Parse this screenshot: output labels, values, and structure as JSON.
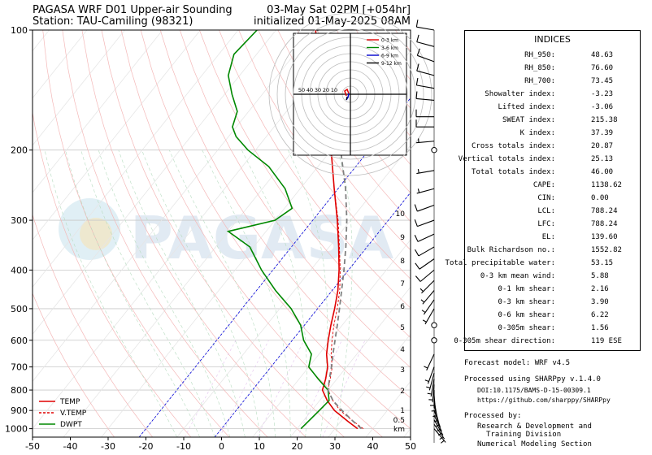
{
  "header": {
    "title_left": "PAGASA WRF D01 Upper-air Sounding",
    "station": "Station: TAU-Camiling (98321)",
    "valid_time": "03-May Sat 02PM [+054hr]",
    "init_time": "initialized 01-May-2025 08AM"
  },
  "watermark": "PAGASA",
  "chart_data": {
    "type": "line",
    "subtype": "skew-t log-p",
    "x_ticks": [
      -50,
      -40,
      -30,
      -20,
      -10,
      0,
      10,
      20,
      30,
      40,
      50
    ],
    "xlim": [
      -50,
      50
    ],
    "p_ticks": [
      100,
      200,
      300,
      400,
      500,
      600,
      700,
      800,
      900,
      1000
    ],
    "ylim_hpa": [
      1050,
      100
    ],
    "height_ticks_km": [
      "10",
      "9",
      "8",
      "7",
      "6",
      "5",
      "4",
      "3",
      "2",
      "1",
      "0.5",
      "km"
    ],
    "legend": {
      "placement": "bottom-left",
      "entries": [
        {
          "label": "TEMP",
          "color": "#e00000",
          "style": "solid"
        },
        {
          "label": "V.TEMP",
          "color": "#e00000",
          "style": "dashed"
        },
        {
          "label": "DWPT",
          "color": "#008800",
          "style": "solid"
        }
      ]
    },
    "series": [
      {
        "name": "TEMP",
        "color": "#e00000",
        "points": [
          [
            1000,
            36
          ],
          [
            960,
            32
          ],
          [
            900,
            26
          ],
          [
            850,
            22
          ],
          [
            800,
            18.5
          ],
          [
            750,
            17
          ],
          [
            700,
            15
          ],
          [
            650,
            12
          ],
          [
            600,
            9.5
          ],
          [
            550,
            7
          ],
          [
            500,
            4.5
          ],
          [
            450,
            1.5
          ],
          [
            400,
            -2.5
          ],
          [
            350,
            -7.5
          ],
          [
            300,
            -13.5
          ],
          [
            250,
            -21
          ],
          [
            200,
            -30
          ],
          [
            175,
            -35.5
          ],
          [
            150,
            -42
          ],
          [
            130,
            -48
          ],
          [
            115,
            -54
          ],
          [
            100,
            -59.5
          ]
        ]
      },
      {
        "name": "V.TEMP",
        "color": "#e00000",
        "points": [
          [
            1000,
            37.5
          ],
          [
            960,
            33.5
          ],
          [
            900,
            27.5
          ],
          [
            850,
            23.5
          ],
          [
            800,
            20
          ],
          [
            750,
            18.2
          ],
          [
            700,
            16.2
          ],
          [
            650,
            13.2
          ],
          [
            600,
            10.5
          ],
          [
            550,
            7.8
          ],
          [
            500,
            5.2
          ],
          [
            450,
            2
          ],
          [
            400,
            -2.2
          ],
          [
            350,
            -7.3
          ],
          [
            300,
            -13.3
          ],
          [
            250,
            -21
          ],
          [
            200,
            -30
          ],
          [
            175,
            -35.5
          ],
          [
            150,
            -42
          ],
          [
            130,
            -48
          ],
          [
            115,
            -54
          ],
          [
            100,
            -59.5
          ]
        ]
      },
      {
        "name": "DWPT",
        "color": "#008800",
        "points": [
          [
            1000,
            21
          ],
          [
            950,
            21.5
          ],
          [
            900,
            22
          ],
          [
            850,
            22.5
          ],
          [
            800,
            20
          ],
          [
            750,
            15
          ],
          [
            700,
            10
          ],
          [
            650,
            8
          ],
          [
            600,
            3
          ],
          [
            550,
            -1
          ],
          [
            500,
            -7
          ],
          [
            450,
            -15
          ],
          [
            400,
            -23
          ],
          [
            350,
            -31
          ],
          [
            320,
            -40
          ],
          [
            300,
            -30
          ],
          [
            280,
            -28
          ],
          [
            250,
            -34
          ],
          [
            220,
            -43
          ],
          [
            200,
            -52
          ],
          [
            185,
            -58
          ],
          [
            175,
            -61
          ],
          [
            160,
            -63
          ],
          [
            145,
            -68
          ],
          [
            130,
            -73
          ],
          [
            115,
            -76
          ],
          [
            100,
            -75
          ]
        ]
      },
      {
        "name": "Parcel",
        "color": "#808080",
        "points": [
          [
            1000,
            37
          ],
          [
            950,
            32.5
          ],
          [
            900,
            28
          ],
          [
            850,
            23.5
          ],
          [
            800,
            20
          ],
          [
            750,
            18
          ],
          [
            700,
            16
          ],
          [
            650,
            13.7
          ],
          [
            600,
            11.3
          ],
          [
            550,
            8.7
          ],
          [
            500,
            5.8
          ],
          [
            450,
            2.5
          ],
          [
            400,
            -1.2
          ],
          [
            350,
            -5.6
          ],
          [
            300,
            -11
          ],
          [
            250,
            -18
          ],
          [
            200,
            -27.5
          ],
          [
            175,
            -33.5
          ],
          [
            150,
            -40.5
          ],
          [
            130,
            -47
          ],
          [
            115,
            -53
          ],
          [
            100,
            -59
          ]
        ]
      }
    ],
    "wind_barbs": [
      {
        "p": 1000,
        "dir": 140,
        "spd": 5
      },
      {
        "p": 975,
        "dir": 145,
        "spd": 5
      },
      {
        "p": 950,
        "dir": 150,
        "spd": 5
      },
      {
        "p": 925,
        "dir": 155,
        "spd": 5
      },
      {
        "p": 900,
        "dir": 160,
        "spd": 5
      },
      {
        "p": 875,
        "dir": 165,
        "spd": 5
      },
      {
        "p": 850,
        "dir": 170,
        "spd": 5
      },
      {
        "p": 825,
        "dir": 175,
        "spd": 5
      },
      {
        "p": 800,
        "dir": 180,
        "spd": 5
      },
      {
        "p": 775,
        "dir": 185,
        "spd": 5
      },
      {
        "p": 750,
        "dir": 190,
        "spd": 5
      },
      {
        "p": 725,
        "dir": 195,
        "spd": 5
      },
      {
        "p": 700,
        "dir": 200,
        "spd": 5
      },
      {
        "p": 650,
        "dir": 205,
        "spd": 5
      },
      {
        "p": 600,
        "dir": 0,
        "spd": 0
      },
      {
        "p": 550,
        "dir": 0,
        "spd": 0
      },
      {
        "p": 500,
        "dir": 210,
        "spd": 5
      },
      {
        "p": 475,
        "dir": 215,
        "spd": 5
      },
      {
        "p": 450,
        "dir": 220,
        "spd": 5
      },
      {
        "p": 425,
        "dir": 225,
        "spd": 5
      },
      {
        "p": 400,
        "dir": 230,
        "spd": 10
      },
      {
        "p": 375,
        "dir": 235,
        "spd": 10
      },
      {
        "p": 350,
        "dir": 240,
        "spd": 10
      },
      {
        "p": 325,
        "dir": 245,
        "spd": 10
      },
      {
        "p": 300,
        "dir": 250,
        "spd": 10
      },
      {
        "p": 275,
        "dir": 250,
        "spd": 10
      },
      {
        "p": 250,
        "dir": 255,
        "spd": 5
      },
      {
        "p": 225,
        "dir": 260,
        "spd": 5
      },
      {
        "p": 200,
        "dir": 0,
        "spd": 0
      },
      {
        "p": 190,
        "dir": 265,
        "spd": 5
      },
      {
        "p": 175,
        "dir": 270,
        "spd": 10
      },
      {
        "p": 165,
        "dir": 270,
        "spd": 10
      },
      {
        "p": 150,
        "dir": 275,
        "spd": 10
      },
      {
        "p": 140,
        "dir": 280,
        "spd": 10
      },
      {
        "p": 130,
        "dir": 285,
        "spd": 10
      },
      {
        "p": 120,
        "dir": 290,
        "spd": 10
      },
      {
        "p": 110,
        "dir": 285,
        "spd": 10
      },
      {
        "p": 100,
        "dir": 280,
        "spd": 10
      }
    ],
    "hodograph": {
      "ring_labels": [
        "50",
        "40",
        "30",
        "20",
        "10"
      ],
      "legend": [
        {
          "label": "0-3 km",
          "color": "#e00000"
        },
        {
          "label": "3-6 km",
          "color": "#008800"
        },
        {
          "label": "6-9 km",
          "color": "#0000cc"
        },
        {
          "label": "9-12 km",
          "color": "#000000"
        }
      ]
    }
  },
  "indices": {
    "title": "INDICES",
    "rows": [
      {
        "label": "RH_950:",
        "value": "48.63"
      },
      {
        "label": "RH_850:",
        "value": "76.60"
      },
      {
        "label": "RH_700:",
        "value": "73.45"
      },
      {
        "label": "Showalter index:",
        "value": "-3.23"
      },
      {
        "label": "Lifted index:",
        "value": "-3.06"
      },
      {
        "label": "SWEAT index:",
        "value": "215.38"
      },
      {
        "label": "K index:",
        "value": "37.39"
      },
      {
        "label": "Cross totals index:",
        "value": "20.87"
      },
      {
        "label": "Vertical totals index:",
        "value": "25.13"
      },
      {
        "label": "Total totals index:",
        "value": "46.00"
      },
      {
        "label": "CAPE:",
        "value": "1138.62"
      },
      {
        "label": "CIN:",
        "value": "0.00"
      },
      {
        "label": "LCL:",
        "value": "788.24"
      },
      {
        "label": "LFC:",
        "value": "788.24"
      },
      {
        "label": "EL:",
        "value": "139.60"
      },
      {
        "label": "Bulk Richardson no.:",
        "value": "1552.82"
      },
      {
        "label": "Total precipitable water:",
        "value": "53.15"
      },
      {
        "label": "0-3 km mean wind:",
        "value": "5.88"
      },
      {
        "label": "0-1 km shear:",
        "value": "2.16"
      },
      {
        "label": "0-3 km shear:",
        "value": "3.90"
      },
      {
        "label": "0-6 km shear:",
        "value": "6.22"
      },
      {
        "label": "0-305m shear:",
        "value": "1.56"
      },
      {
        "label": "0-305m shear direction:",
        "value": "119 ESE"
      }
    ]
  },
  "footer": {
    "model": "Forecast model: WRF v4.5",
    "processed": "Processed using SHARPpy v.1.4.0",
    "doi": "DOI:10.1175/BAMS-D-15-00309.1",
    "url": "https://github.com/sharppy/SHARPpy",
    "processed_by": "Processed by:",
    "org1": "Research & Development and",
    "org2": "Training Division",
    "org3": "Numerical Modeling Section"
  }
}
